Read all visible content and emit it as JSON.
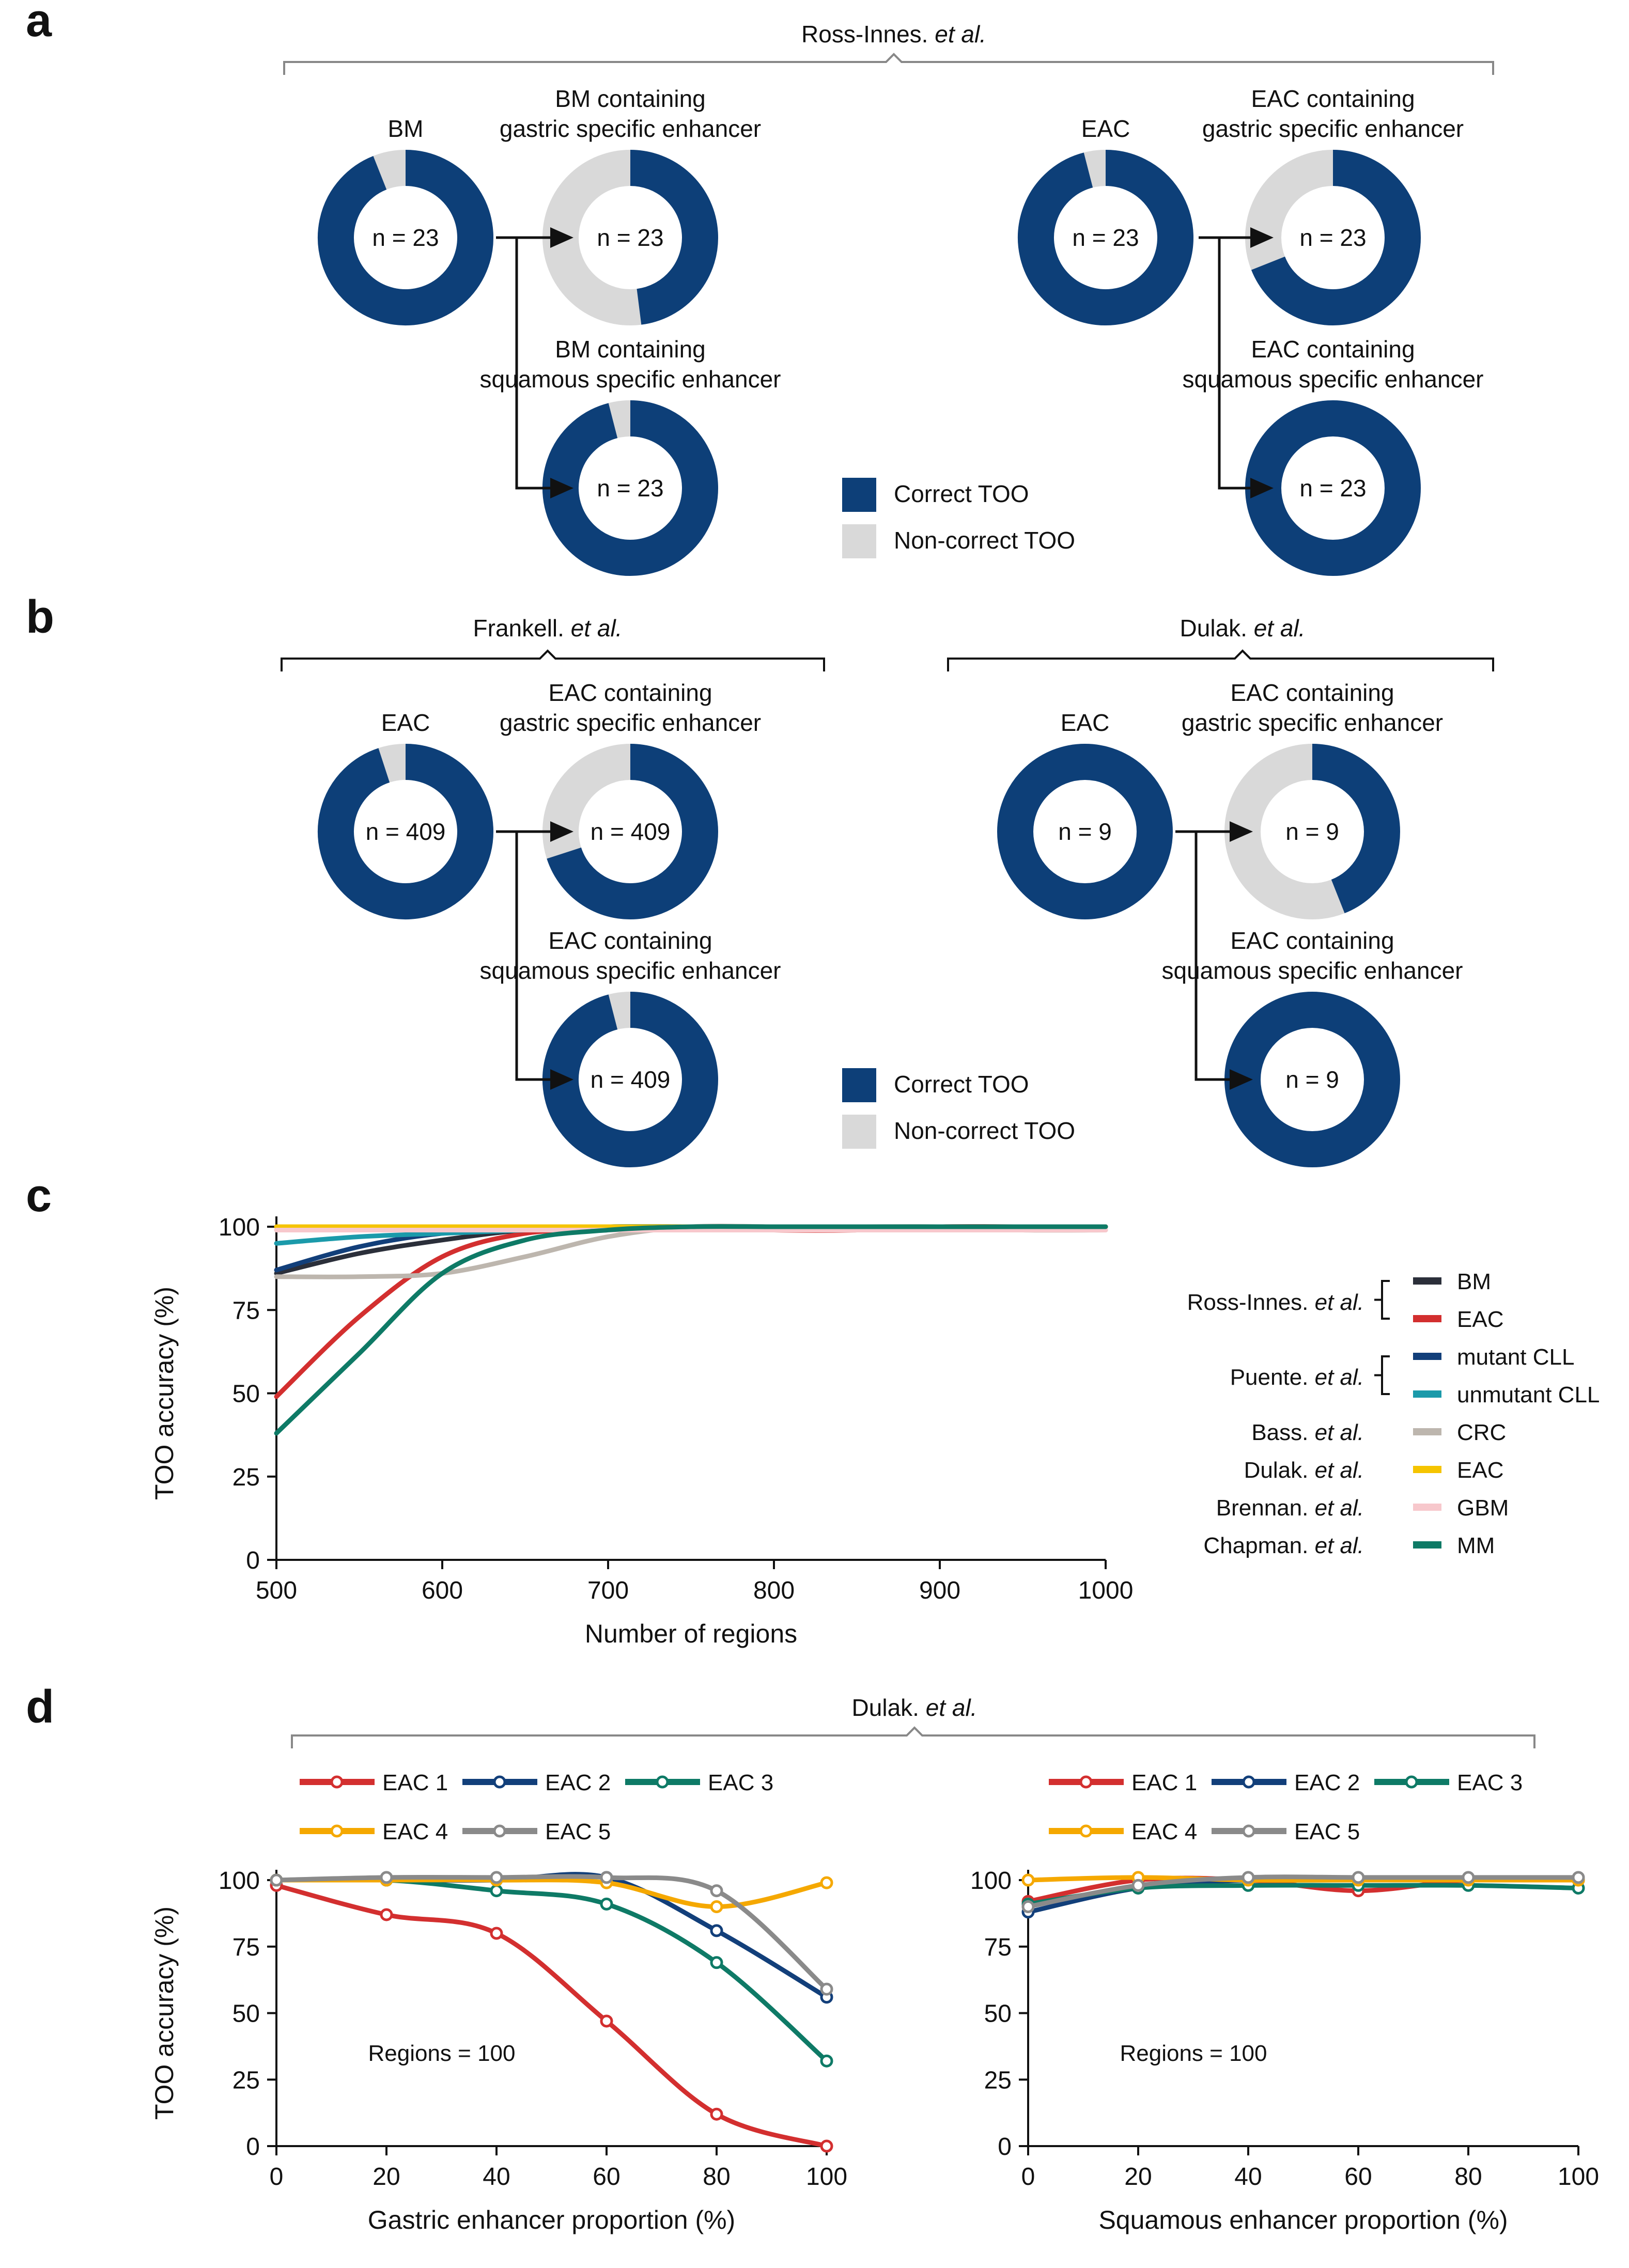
{
  "colors": {
    "correct": "#0d3f78",
    "noncorrect": "#d9d9d9"
  },
  "panel_a": {
    "label": "a",
    "author": "Ross-Innes.",
    "etal": "et al.",
    "donuts": [
      {
        "title1": "",
        "title2": "BM",
        "n": "n = 23",
        "correct": 0.94
      },
      {
        "title1": "BM containing",
        "title2": "gastric specific enhancer",
        "n": "n = 23",
        "correct": 0.48
      },
      {
        "title1": "BM containing",
        "title2": "squamous specific enhancer",
        "n": "n = 23",
        "correct": 0.96
      },
      {
        "title1": "",
        "title2": "EAC",
        "n": "n = 23",
        "correct": 0.96
      },
      {
        "title1": "EAC containing",
        "title2": "gastric specific enhancer",
        "n": "n = 23",
        "correct": 0.69
      },
      {
        "title1": "EAC containing",
        "title2": "squamous specific enhancer",
        "n": "n = 23",
        "correct": 1.0
      }
    ],
    "legend": {
      "correct": "Correct TOO",
      "noncorrect": "Non-correct TOO"
    }
  },
  "panel_b": {
    "label": "b",
    "left_author": "Frankell.",
    "left_etal": "et al.",
    "right_author": "Dulak.",
    "right_etal": "et al.",
    "donuts": [
      {
        "title1": "",
        "title2": "EAC",
        "n": "n = 409",
        "correct": 0.95
      },
      {
        "title1": "EAC containing",
        "title2": "gastric specific enhancer",
        "n": "n = 409",
        "correct": 0.7
      },
      {
        "title1": "EAC containing",
        "title2": "squamous specific enhancer",
        "n": "n = 409",
        "correct": 0.96
      },
      {
        "title1": "",
        "title2": "EAC",
        "n": "n = 9",
        "correct": 1.0
      },
      {
        "title1": "EAC containing",
        "title2": "gastric specific enhancer",
        "n": "n = 9",
        "correct": 0.44
      },
      {
        "title1": "EAC containing",
        "title2": "squamous specific enhancer",
        "n": "n = 9",
        "correct": 1.0
      }
    ],
    "legend": {
      "correct": "Correct TOO",
      "noncorrect": "Non-correct TOO"
    }
  },
  "chart_data": [
    {
      "panel": "c",
      "type": "line",
      "title": "",
      "xlabel": "Number of regions",
      "ylabel": "TOO accuracy (%)",
      "xlim": [
        500,
        1000
      ],
      "ylim": [
        0,
        100
      ],
      "xticks": [
        "500",
        "600",
        "700",
        "800",
        "900",
        "1000"
      ],
      "yticks": [
        "0",
        "25",
        "50",
        "75",
        "100"
      ],
      "legend_groups": [
        {
          "author": "Ross-Innes.",
          "etal": "et al.",
          "bracket": true
        },
        {
          "author": "Puente.",
          "etal": "et al.",
          "bracket": true
        },
        {
          "author": "Bass.",
          "etal": "et al."
        },
        {
          "author": "Dulak.",
          "etal": "et al."
        },
        {
          "author": "Brennan.",
          "etal": "et al."
        },
        {
          "author": "Chapman.",
          "etal": "et al."
        }
      ],
      "series": [
        {
          "name": "BM",
          "color": "#2b2f3a",
          "x": [
            500,
            550,
            600,
            650,
            700,
            750,
            800,
            850,
            900,
            950,
            1000
          ],
          "values": [
            86,
            92,
            96,
            99,
            100,
            100,
            100,
            100,
            100,
            100,
            100
          ]
        },
        {
          "name": "EAC",
          "color": "#d32f2f",
          "x": [
            500,
            550,
            600,
            650,
            700,
            750,
            800,
            850,
            900,
            950,
            1000
          ],
          "values": [
            49,
            73,
            91,
            98,
            99,
            100,
            99,
            99,
            100,
            100,
            100
          ]
        },
        {
          "name": "mutant CLL",
          "color": "#123f7a",
          "x": [
            500,
            550,
            600,
            650,
            700,
            750,
            800,
            850,
            900,
            950,
            1000
          ],
          "values": [
            87,
            94,
            98,
            99,
            99,
            100,
            100,
            100,
            100,
            100,
            100
          ]
        },
        {
          "name": "unmutant CLL",
          "color": "#1b9aaa",
          "x": [
            500,
            550,
            600,
            650,
            700,
            750,
            800,
            850,
            900,
            950,
            1000
          ],
          "values": [
            95,
            97,
            98,
            99,
            100,
            100,
            100,
            100,
            100,
            100,
            100
          ]
        },
        {
          "name": "CRC",
          "color": "#bdb6ae",
          "x": [
            500,
            550,
            600,
            650,
            700,
            750,
            800,
            850,
            900,
            950,
            1000
          ],
          "values": [
            85,
            85,
            86,
            91,
            97,
            100,
            100,
            100,
            100,
            99,
            99
          ]
        },
        {
          "name": "EAC",
          "color": "#f5c400",
          "x": [
            500,
            550,
            600,
            650,
            700,
            750,
            800,
            850,
            900,
            950,
            1000
          ],
          "values": [
            100,
            100,
            100,
            100,
            100,
            100,
            100,
            100,
            100,
            100,
            100
          ]
        },
        {
          "name": "GBM",
          "color": "#f7c8cc",
          "x": [
            500,
            550,
            600,
            650,
            700,
            750,
            800,
            850,
            900,
            950,
            1000
          ],
          "values": [
            99,
            99,
            99,
            99,
            99,
            99,
            99,
            99,
            99,
            99,
            99
          ]
        },
        {
          "name": "MM",
          "color": "#0e7a66",
          "x": [
            500,
            550,
            600,
            650,
            700,
            750,
            800,
            850,
            900,
            950,
            1000
          ],
          "values": [
            38,
            62,
            86,
            96,
            99,
            100,
            100,
            100,
            100,
            100,
            100
          ]
        }
      ]
    },
    {
      "panel": "d-left",
      "type": "line",
      "xlabel": "Gastric enhancer proportion (%)",
      "ylabel": "TOO accuracy (%)",
      "annotation": "Regions = 100",
      "xlim": [
        0,
        100
      ],
      "ylim": [
        0,
        100
      ],
      "xticks": [
        "0",
        "20",
        "40",
        "60",
        "80",
        "100"
      ],
      "yticks": [
        "0",
        "25",
        "50",
        "75",
        "100"
      ],
      "x": [
        0,
        20,
        40,
        60,
        80,
        100
      ],
      "series": [
        {
          "name": "EAC 1",
          "color": "#d32f2f",
          "values": [
            98,
            87,
            80,
            47,
            12,
            0
          ]
        },
        {
          "name": "EAC 2",
          "color": "#123f7a",
          "values": [
            100,
            100,
            100,
            101,
            81,
            56
          ]
        },
        {
          "name": "EAC 3",
          "color": "#0e7a66",
          "values": [
            100,
            100,
            96,
            91,
            69,
            32
          ]
        },
        {
          "name": "EAC 4",
          "color": "#f5a800",
          "values": [
            100,
            100,
            100,
            99,
            90,
            99
          ]
        },
        {
          "name": "EAC 5",
          "color": "#8a8a8a",
          "values": [
            100,
            101,
            101,
            101,
            96,
            59
          ]
        }
      ]
    },
    {
      "panel": "d-right",
      "type": "line",
      "xlabel": "Squamous enhancer proportion (%)",
      "ylabel": "",
      "annotation": "Regions = 100",
      "xlim": [
        0,
        100
      ],
      "ylim": [
        0,
        100
      ],
      "xticks": [
        "0",
        "20",
        "40",
        "60",
        "80",
        "100"
      ],
      "yticks": [
        "0",
        "25",
        "50",
        "75",
        "100"
      ],
      "x": [
        0,
        20,
        40,
        60,
        80,
        100
      ],
      "series": [
        {
          "name": "EAC 1",
          "color": "#d32f2f",
          "values": [
            92,
            100,
            100,
            96,
            100,
            100
          ]
        },
        {
          "name": "EAC 2",
          "color": "#123f7a",
          "values": [
            88,
            97,
            100,
            100,
            100,
            100
          ]
        },
        {
          "name": "EAC 3",
          "color": "#0e7a66",
          "values": [
            91,
            97,
            98,
            98,
            98,
            97
          ]
        },
        {
          "name": "EAC 4",
          "color": "#f5a800",
          "values": [
            100,
            101,
            100,
            100,
            100,
            100
          ]
        },
        {
          "name": "EAC 5",
          "color": "#8a8a8a",
          "values": [
            90,
            98,
            101,
            101,
            101,
            101
          ]
        }
      ]
    }
  ],
  "panel_c": {
    "label": "c"
  },
  "panel_d": {
    "label": "d",
    "author": "Dulak.",
    "etal": "et al."
  }
}
